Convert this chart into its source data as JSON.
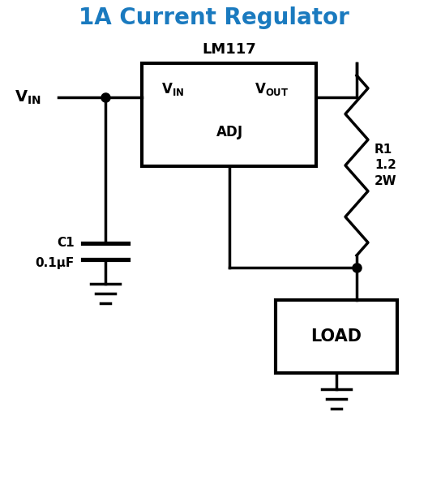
{
  "title": "1A Current Regulator",
  "title_color": "#1a7abf",
  "title_fontsize": 20,
  "bg_color": "#ffffff",
  "line_color": "#000000",
  "line_width": 2.5,
  "ic_label": "LM117",
  "load_label": "LOAD",
  "r1_label": "R1\n1.2\n2W",
  "c1_label_1": "C1",
  "c1_label_2": "0.1μF"
}
